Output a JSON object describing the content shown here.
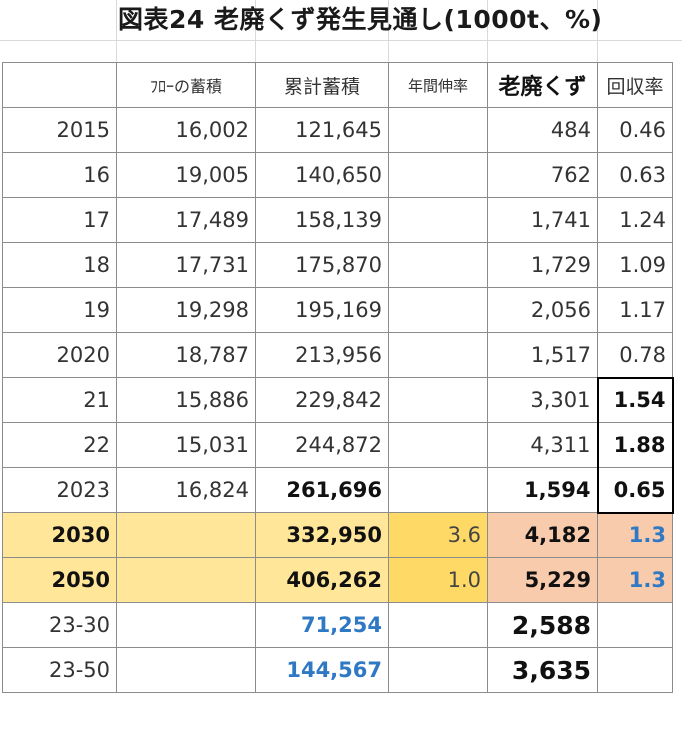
{
  "title": "図表24  老廃くず発生見通し(1000t、%)",
  "headers": {
    "year": "",
    "flow": "ﾌﾛｰの蓄積",
    "cumulative": "累計蓄積",
    "growth": "年間伸率",
    "waste": "老廃くず",
    "rate": "回収率"
  },
  "rows": [
    {
      "year": "2015",
      "flow": "16,002",
      "cumulative": "121,645",
      "growth": "",
      "waste": "484",
      "rate": "0.46"
    },
    {
      "year": "16",
      "flow": "19,005",
      "cumulative": "140,650",
      "growth": "",
      "waste": "762",
      "rate": "0.63"
    },
    {
      "year": "17",
      "flow": "17,489",
      "cumulative": "158,139",
      "growth": "",
      "waste": "1,741",
      "rate": "1.24"
    },
    {
      "year": "18",
      "flow": "17,731",
      "cumulative": "175,870",
      "growth": "",
      "waste": "1,729",
      "rate": "1.09"
    },
    {
      "year": "19",
      "flow": "19,298",
      "cumulative": "195,169",
      "growth": "",
      "waste": "2,056",
      "rate": "1.17"
    },
    {
      "year": "2020",
      "flow": "18,787",
      "cumulative": "213,956",
      "growth": "",
      "waste": "1,517",
      "rate": "0.78"
    },
    {
      "year": "21",
      "flow": "15,886",
      "cumulative": "229,842",
      "growth": "",
      "waste": "3,301",
      "rate": "1.54"
    },
    {
      "year": "22",
      "flow": "15,031",
      "cumulative": "244,872",
      "growth": "",
      "waste": "4,311",
      "rate": "1.88"
    },
    {
      "year": "2023",
      "flow": "16,824",
      "cumulative": "261,696",
      "growth": "",
      "waste": "1,594",
      "rate": "0.65"
    }
  ],
  "projections": [
    {
      "year": "2030",
      "flow": "",
      "cumulative": "332,950",
      "growth": "3.6",
      "waste": "4,182",
      "rate": "1.3"
    },
    {
      "year": "2050",
      "flow": "",
      "cumulative": "406,262",
      "growth": "1.0",
      "waste": "5,229",
      "rate": "1.3"
    }
  ],
  "totals": [
    {
      "year": "23-30",
      "flow": "",
      "cumulative": "71,254",
      "growth": "",
      "waste": "2,588",
      "rate": ""
    },
    {
      "year": "23-50",
      "flow": "",
      "cumulative": "144,567",
      "growth": "",
      "waste": "3,635",
      "rate": ""
    }
  ],
  "colors": {
    "projection_yellow": "#ffe699",
    "growth_gold": "#ffd966",
    "waste_salmon": "#f8cbad",
    "accent_blue": "#2f78c4"
  }
}
